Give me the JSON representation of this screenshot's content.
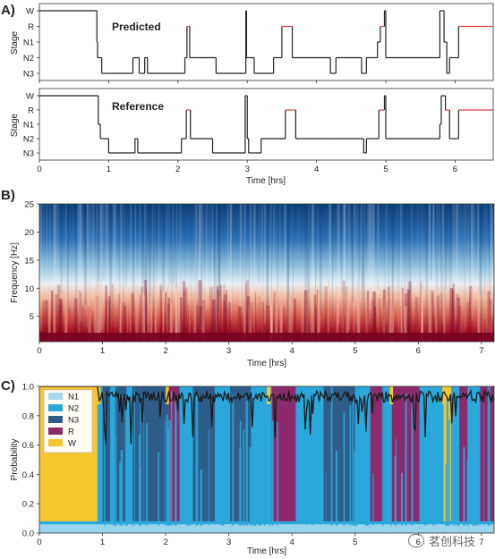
{
  "panels": {
    "a": "A)",
    "b": "B)",
    "c": "C)"
  },
  "watermark": "茗创科技",
  "chart_data": [
    {
      "type": "line",
      "panel": "A",
      "title": "Predicted",
      "title_color": "#2a4b86",
      "ylabel": "Stage",
      "stage_labels": [
        "W",
        "R",
        "N1",
        "N2",
        "N3"
      ],
      "xlim": [
        0,
        6.55
      ],
      "x_ticks": [
        0,
        1,
        2,
        3,
        4,
        5,
        6
      ],
      "series_color": "#222222",
      "rem_color": "#d43f3f",
      "hypnogram": [
        [
          0,
          "W"
        ],
        [
          0.83,
          "N1"
        ],
        [
          0.84,
          "N2"
        ],
        [
          0.9,
          "N3"
        ],
        [
          1.0,
          "N3"
        ],
        [
          1.35,
          "N2"
        ],
        [
          1.44,
          "N3"
        ],
        [
          1.52,
          "N2"
        ],
        [
          1.56,
          "N3"
        ],
        [
          2.1,
          "N2"
        ],
        [
          2.13,
          "R"
        ],
        [
          2.17,
          "N2"
        ],
        [
          2.25,
          "N2"
        ],
        [
          2.55,
          "N3"
        ],
        [
          2.98,
          "W"
        ],
        [
          2.99,
          "N2"
        ],
        [
          3.1,
          "N3"
        ],
        [
          3.38,
          "N2"
        ],
        [
          3.5,
          "R"
        ],
        [
          3.65,
          "N2"
        ],
        [
          4.2,
          "N3"
        ],
        [
          4.28,
          "N2"
        ],
        [
          4.65,
          "N3"
        ],
        [
          4.72,
          "N2"
        ],
        [
          4.88,
          "N1"
        ],
        [
          4.92,
          "R"
        ],
        [
          4.98,
          "W"
        ],
        [
          5.0,
          "N2"
        ],
        [
          5.05,
          "N2"
        ],
        [
          5.78,
          "W"
        ],
        [
          5.84,
          "N1"
        ],
        [
          5.88,
          "N3"
        ],
        [
          5.92,
          "N2"
        ],
        [
          6.0,
          "N2"
        ],
        [
          6.05,
          "R"
        ],
        [
          6.55,
          "R"
        ]
      ]
    },
    {
      "type": "line",
      "panel": "A",
      "title": "Reference",
      "title_color": "#f08a24",
      "ylabel": "Stage",
      "stage_labels": [
        "W",
        "R",
        "N1",
        "N2",
        "N3"
      ],
      "xlabel": "Time [hrs]",
      "xlim": [
        0,
        6.55
      ],
      "x_ticks": [
        0,
        1,
        2,
        3,
        4,
        5,
        6
      ],
      "series_color": "#222222",
      "rem_color": "#d43f3f",
      "hypnogram": [
        [
          0,
          "W"
        ],
        [
          0.85,
          "N1"
        ],
        [
          0.88,
          "N2"
        ],
        [
          1.0,
          "N3"
        ],
        [
          1.1,
          "N3"
        ],
        [
          1.38,
          "N2"
        ],
        [
          1.42,
          "N3"
        ],
        [
          2.05,
          "N2"
        ],
        [
          2.12,
          "R"
        ],
        [
          2.18,
          "N2"
        ],
        [
          2.5,
          "N3"
        ],
        [
          2.97,
          "W"
        ],
        [
          3.0,
          "N2"
        ],
        [
          3.02,
          "N3"
        ],
        [
          3.2,
          "N2"
        ],
        [
          3.55,
          "R"
        ],
        [
          3.7,
          "N2"
        ],
        [
          4.2,
          "N2"
        ],
        [
          4.68,
          "N3"
        ],
        [
          4.72,
          "N2"
        ],
        [
          4.9,
          "R"
        ],
        [
          4.98,
          "W"
        ],
        [
          5.0,
          "N2"
        ],
        [
          5.78,
          "N1"
        ],
        [
          5.8,
          "W"
        ],
        [
          5.86,
          "R"
        ],
        [
          5.92,
          "N2"
        ],
        [
          6.0,
          "N2"
        ],
        [
          6.05,
          "R"
        ],
        [
          6.55,
          "R"
        ]
      ]
    },
    {
      "type": "heatmap",
      "panel": "B",
      "xlabel": "Time [hrs]",
      "ylabel": "Frequency [Hz]",
      "xlim": [
        0,
        7.2
      ],
      "ylim": [
        0.5,
        25
      ],
      "x_ticks": [
        0,
        1,
        2,
        3,
        4,
        5,
        6,
        7
      ],
      "y_ticks": [
        5,
        10,
        15,
        20,
        25
      ],
      "colormap": [
        "#053061",
        "#2166ac",
        "#4393c3",
        "#92c5de",
        "#f7f7f7",
        "#f4a582",
        "#d6604d",
        "#b2182b",
        "#67001f"
      ],
      "description_levels": {
        "low_freq_power": "high",
        "high_freq_power": "low"
      }
    },
    {
      "type": "area",
      "panel": "C",
      "xlabel": "Time [hrs]",
      "ylabel": "Probability",
      "xlim": [
        0,
        7.2
      ],
      "ylim": [
        0,
        1.0
      ],
      "x_ticks": [
        0,
        1,
        2,
        3,
        4,
        5,
        6,
        7
      ],
      "y_ticks": [
        0.0,
        0.2,
        0.4,
        0.6,
        0.8,
        1.0
      ],
      "legend_position": "top-left",
      "series": [
        {
          "name": "N1",
          "color": "#a6d8ee"
        },
        {
          "name": "N2",
          "color": "#2aa8dc"
        },
        {
          "name": "N3",
          "color": "#2f5d8a"
        },
        {
          "name": "R",
          "color": "#8c2a6b"
        },
        {
          "name": "W",
          "color": "#f7c52e"
        }
      ],
      "segments": [
        [
          0,
          0.92,
          "W"
        ],
        [
          0.92,
          1.0,
          "N2"
        ],
        [
          1.0,
          1.12,
          "N3"
        ],
        [
          1.12,
          1.2,
          "N2"
        ],
        [
          1.2,
          1.38,
          "N3"
        ],
        [
          1.38,
          1.47,
          "N2"
        ],
        [
          1.47,
          2.05,
          "N3"
        ],
        [
          2.05,
          2.22,
          "R"
        ],
        [
          2.22,
          2.43,
          "N2"
        ],
        [
          2.43,
          2.78,
          "N3"
        ],
        [
          2.78,
          3.02,
          "N2"
        ],
        [
          3.02,
          3.35,
          "N3"
        ],
        [
          3.35,
          3.62,
          "N2"
        ],
        [
          3.62,
          3.68,
          "N2"
        ],
        [
          3.68,
          4.06,
          "R"
        ],
        [
          4.06,
          4.5,
          "N2"
        ],
        [
          4.5,
          5.0,
          "N3"
        ],
        [
          5.0,
          5.24,
          "N2"
        ],
        [
          5.24,
          5.45,
          "R"
        ],
        [
          5.45,
          5.58,
          "N2"
        ],
        [
          5.58,
          6.02,
          "R"
        ],
        [
          6.02,
          6.4,
          "N2"
        ],
        [
          6.4,
          6.52,
          "W"
        ],
        [
          6.52,
          6.65,
          "N2"
        ],
        [
          6.65,
          6.78,
          "R"
        ],
        [
          6.78,
          6.98,
          "N2"
        ],
        [
          6.98,
          7.2,
          "R"
        ]
      ]
    }
  ]
}
